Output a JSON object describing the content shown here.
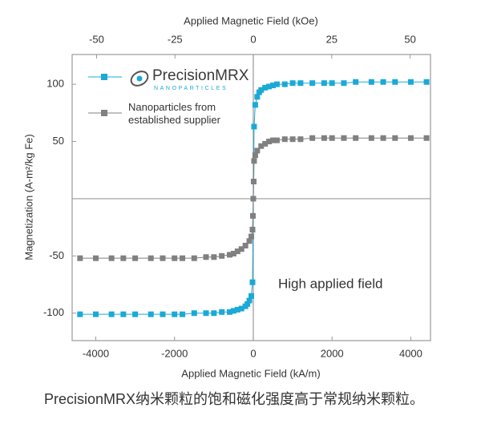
{
  "chart_data": {
    "type": "scatter-line",
    "title_top": "Applied Magnetic Field (kOe)",
    "xlabel": "Applied Magnetic Field (kA/m)",
    "ylabel": "Magnetization (A-m²/kg Fe)",
    "annotation": "High applied field",
    "legend_logo_subtext": "NANOPARTICLES",
    "xlim": [
      -4600,
      4500
    ],
    "xticks": [
      -4000,
      -2000,
      0,
      2000,
      4000
    ],
    "x2lim": [
      -57.8,
      56.5
    ],
    "x2ticks": [
      -50,
      -25,
      0,
      25,
      50
    ],
    "ylim": [
      -124,
      126
    ],
    "yticks": [
      -100,
      -50,
      50,
      100
    ],
    "legend": "upper left",
    "series": [
      {
        "name": "PrecisionMRX",
        "color": "#1ba9d6",
        "x": [
          -4400,
          -4000,
          -3600,
          -3300,
          -3000,
          -2600,
          -2300,
          -2000,
          -1800,
          -1500,
          -1200,
          -1000,
          -800,
          -600,
          -500,
          -400,
          -300,
          -200,
          -150,
          -100,
          -50,
          -20,
          20,
          50,
          100,
          150,
          200,
          300,
          400,
          500,
          600,
          800,
          1000,
          1200,
          1500,
          1800,
          2000,
          2300,
          2600,
          3000,
          3300,
          3600,
          4000,
          4400
        ],
        "values": [
          -101,
          -101,
          -101,
          -101,
          -101,
          -101,
          -101,
          -101,
          -101,
          -100,
          -100,
          -100,
          -99,
          -99,
          -98,
          -97,
          -96,
          -94,
          -92,
          -89,
          -85,
          -73,
          63,
          82,
          89,
          93,
          95,
          97,
          98,
          99,
          100,
          100,
          101,
          101,
          101,
          101,
          101,
          101,
          102,
          102,
          102,
          102,
          102,
          102
        ]
      },
      {
        "name": "Nanoparticles from established supplier",
        "color": "#808080",
        "x": [
          -4400,
          -4000,
          -3600,
          -3300,
          -3000,
          -2600,
          -2300,
          -2000,
          -1800,
          -1500,
          -1200,
          -1000,
          -800,
          -600,
          -500,
          -400,
          -300,
          -200,
          -100,
          -50,
          -20,
          -10,
          0,
          10,
          20,
          50,
          100,
          200,
          300,
          400,
          500,
          600,
          800,
          1000,
          1200,
          1500,
          1800,
          2000,
          2300,
          2600,
          3000,
          3300,
          3600,
          4000,
          4400
        ],
        "values": [
          -52,
          -52,
          -52,
          -52,
          -52,
          -52,
          -52,
          -52,
          -52,
          -52,
          -51,
          -51,
          -50,
          -49,
          -48,
          -46,
          -44,
          -41,
          -37,
          -33,
          -27,
          -15,
          0,
          15,
          33,
          38,
          42,
          46,
          48,
          50,
          51,
          51,
          52,
          52,
          52,
          53,
          53,
          53,
          53,
          53,
          53,
          53,
          53,
          53,
          53
        ]
      }
    ]
  },
  "caption": "PrecisionMRX纳米颗粒的饱和磁化强度高于常规纳米颗粒。"
}
